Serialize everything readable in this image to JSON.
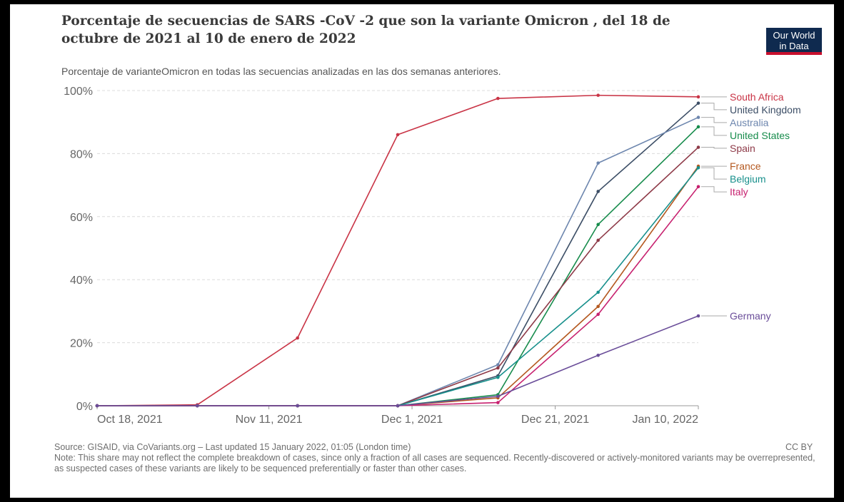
{
  "header": {
    "title": "Porcentaje de secuencias de SARS -CoV -2 que son la variante Omicron , del 18 de octubre de 2021 al 10 de enero de 2022",
    "subtitle": "Porcentaje de varianteOmicron en todas las secuencias analizadas en las dos semanas anteriores.",
    "logo_line1": "Our World",
    "logo_line2": "in Data"
  },
  "footer": {
    "source": "Source: GISAID, via CoVariants.org – Last updated 15 January 2022, 01:05 (London time)",
    "note": "Note: This share may not reflect the complete breakdown of cases, since only a fraction of all cases are sequenced. Recently-discovered or actively-monitored variants may be overrepresented, as suspected cases of these variants are likely to be sequenced preferentially or faster than other cases.",
    "license": "CC BY"
  },
  "chart_data": {
    "type": "line",
    "x": [
      "2021-10-18",
      "2021-11-01",
      "2021-11-15",
      "2021-11-29",
      "2021-12-13",
      "2021-12-27",
      "2022-01-10"
    ],
    "x_tick_labels": [
      "Oct 18, 2021",
      "Nov 11, 2021",
      "Dec 1, 2021",
      "Dec 21, 2021",
      "Jan 10, 2022"
    ],
    "x_tick_dates": [
      "2021-10-18",
      "2021-11-11",
      "2021-12-01",
      "2021-12-21",
      "2022-01-10"
    ],
    "y_tick_labels": [
      "0%",
      "20%",
      "40%",
      "60%",
      "80%",
      "100%"
    ],
    "ylim": [
      0,
      100
    ],
    "grid": true,
    "legend": "right, inline labels",
    "series": [
      {
        "name": "South Africa",
        "color": "#c93446",
        "values": [
          0,
          0.3,
          21.5,
          86,
          97.5,
          98.5,
          98
        ]
      },
      {
        "name": "United Kingdom",
        "color": "#3c4e66",
        "values": [
          0,
          0,
          0,
          0,
          9.5,
          68,
          96
        ]
      },
      {
        "name": "Australia",
        "color": "#6d86ae",
        "values": [
          0,
          0,
          0,
          0,
          13,
          77,
          91.5
        ]
      },
      {
        "name": "United States",
        "color": "#178c4c",
        "values": [
          0,
          0,
          0,
          0,
          3.5,
          57.5,
          88.5
        ]
      },
      {
        "name": "Spain",
        "color": "#8e3a48",
        "values": [
          0,
          0,
          0,
          0,
          12,
          52.5,
          82
        ]
      },
      {
        "name": "France",
        "color": "#b4581f",
        "values": [
          0,
          0,
          0,
          0,
          2.5,
          31.5,
          76
        ]
      },
      {
        "name": "Belgium",
        "color": "#18908c",
        "values": [
          0,
          0,
          0,
          0,
          9,
          36,
          75.5
        ]
      },
      {
        "name": "Italy",
        "color": "#c7216f",
        "values": [
          0,
          0,
          0,
          0,
          1,
          29,
          69.5
        ]
      },
      {
        "name": "Germany",
        "color": "#6a4d99",
        "values": [
          0,
          0,
          0,
          0,
          3,
          16,
          28.5
        ]
      }
    ]
  }
}
